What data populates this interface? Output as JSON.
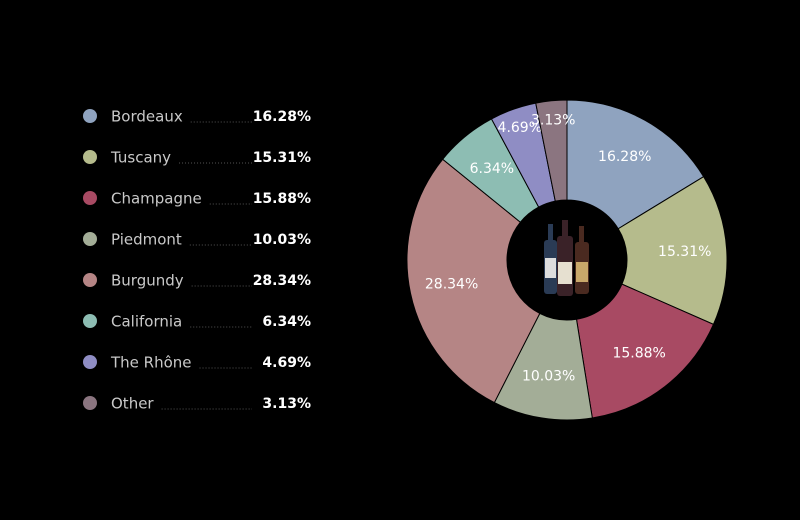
{
  "chart_data": {
    "type": "pie",
    "donut": true,
    "categories": [
      "Bordeaux",
      "Tuscany",
      "Champagne",
      "Piedmont",
      "Burgundy",
      "California",
      "The Rhône",
      "Other"
    ],
    "values": [
      16.28,
      15.31,
      15.88,
      10.03,
      28.34,
      6.34,
      4.69,
      3.13
    ],
    "value_labels": [
      "16.28%",
      "15.31%",
      "15.88%",
      "10.03%",
      "28.34%",
      "6.34%",
      "4.69%",
      "3.13%"
    ],
    "colors": [
      "#8fa3bf",
      "#b5bb8c",
      "#a84a63",
      "#a3ad97",
      "#b58585",
      "#8dbdb3",
      "#8f8dc4",
      "#8b7580"
    ],
    "legend": "left"
  }
}
